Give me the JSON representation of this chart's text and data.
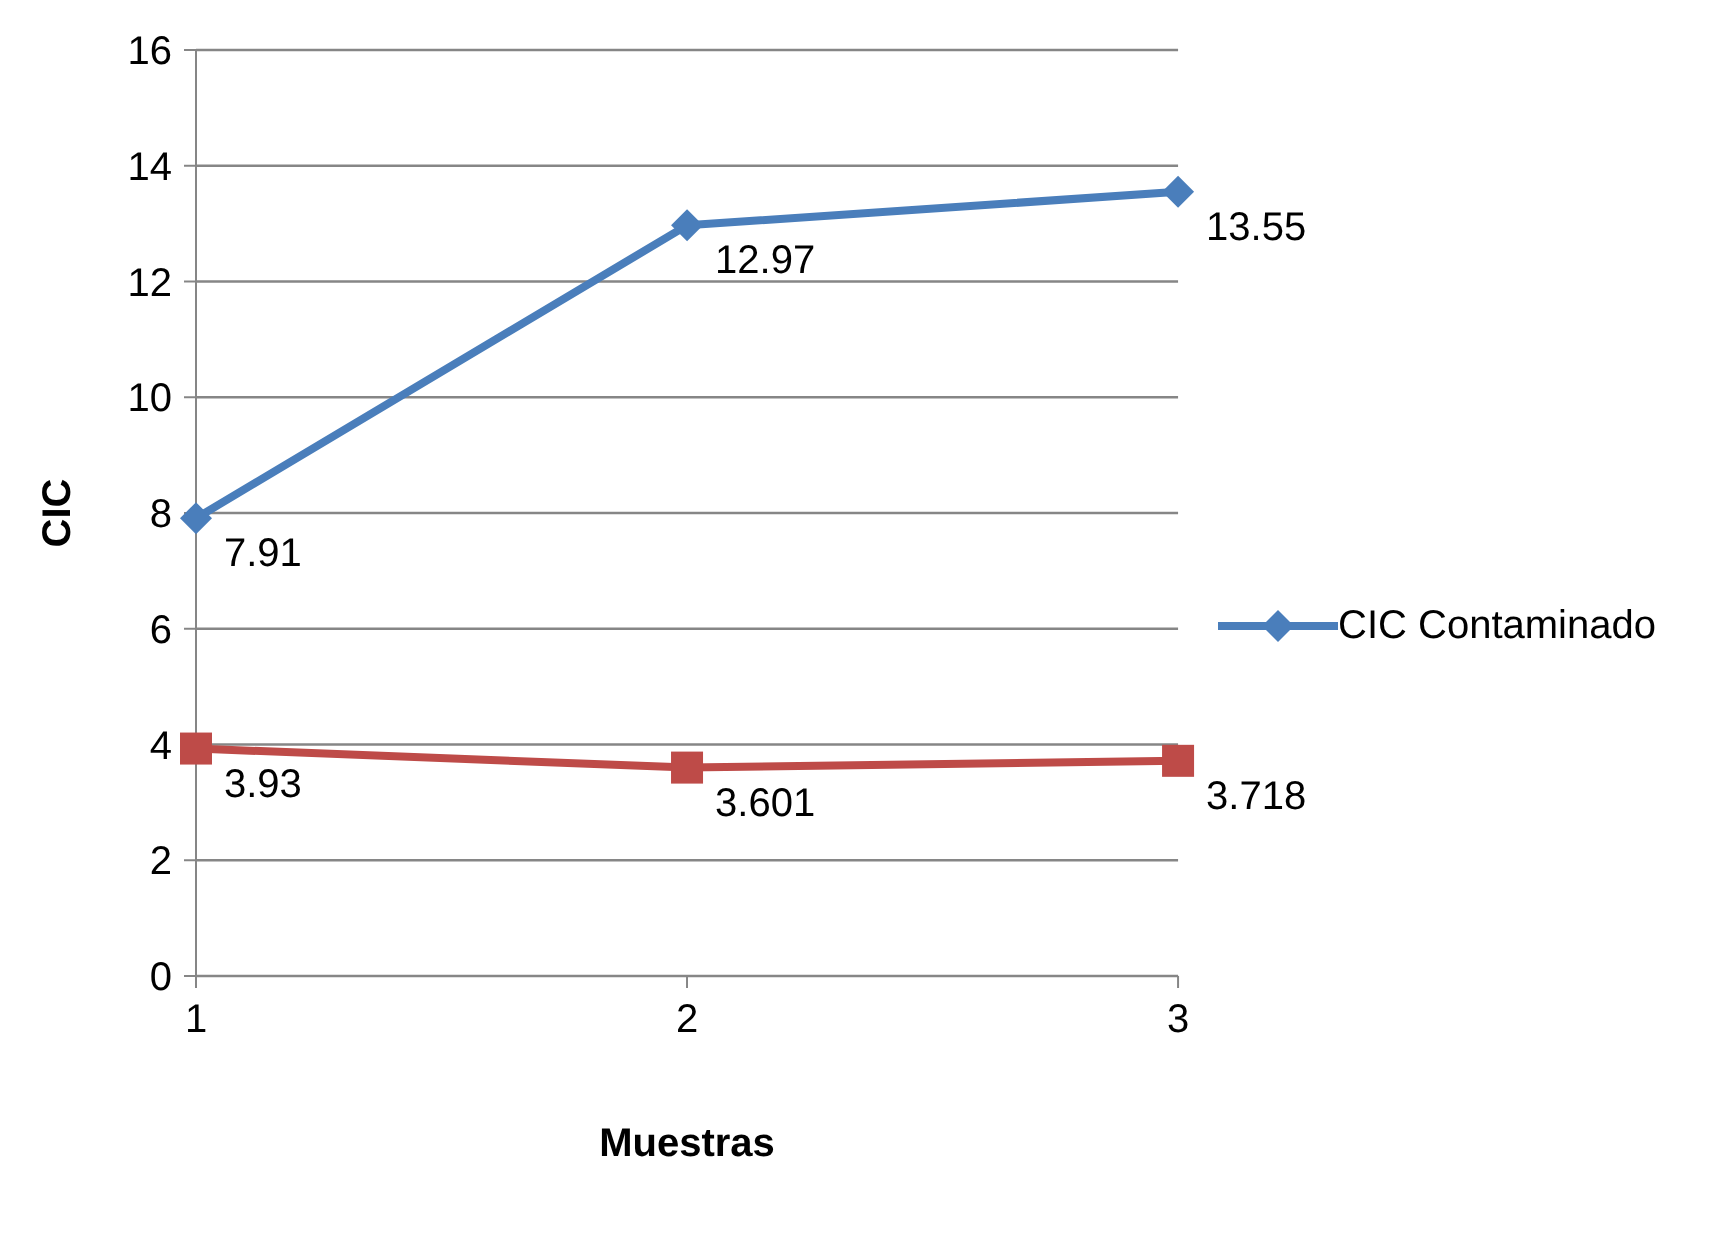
{
  "chart_data": {
    "type": "line",
    "xlabel": "Muestras",
    "ylabel": "CIC",
    "categories": [
      "1",
      "2",
      "3"
    ],
    "series": [
      {
        "name": "CIC Contaminado",
        "color": "#4a7ebb",
        "marker": "diamond",
        "values": [
          7.91,
          12.97,
          13.55
        ]
      },
      {
        "color": "#be4b48",
        "marker": "square",
        "values": [
          3.93,
          3.601,
          3.718
        ]
      }
    ],
    "ylim": [
      0,
      16
    ],
    "yticks": [
      0,
      2,
      4,
      6,
      8,
      10,
      12,
      14,
      16
    ],
    "grid": "y",
    "legend": "right",
    "data_labels": true
  }
}
